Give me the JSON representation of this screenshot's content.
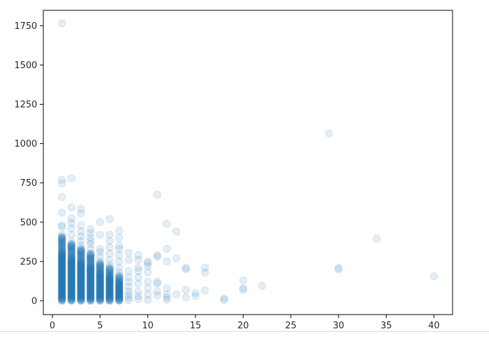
{
  "chart_data": {
    "type": "scatter",
    "title": "",
    "xlabel": "",
    "ylabel": "",
    "xlim": [
      -0.95,
      41.95
    ],
    "ylim": [
      -88,
      1848
    ],
    "xticks": [
      0,
      5,
      10,
      15,
      20,
      25,
      30,
      35,
      40
    ],
    "yticks": [
      0,
      250,
      500,
      750,
      1000,
      1250,
      1500,
      1750
    ],
    "xtick_labels": [
      "0",
      "5",
      "10",
      "15",
      "20",
      "25",
      "30",
      "35",
      "40"
    ],
    "ytick_labels": [
      "0",
      "250",
      "500",
      "750",
      "1000",
      "1250",
      "1500",
      "1750"
    ],
    "grid": false,
    "legend": "none",
    "marker_color": "#1f77b4",
    "marker_alpha": 0.12,
    "points": [
      [
        1,
        1765
      ],
      [
        1,
        770
      ],
      [
        1,
        745
      ],
      [
        1,
        660
      ],
      [
        1,
        560
      ],
      [
        1,
        480
      ],
      [
        1,
        470
      ],
      [
        1,
        420
      ],
      [
        1,
        400
      ],
      [
        2,
        780
      ],
      [
        2,
        595
      ],
      [
        2,
        525
      ],
      [
        2,
        495
      ],
      [
        2,
        460
      ],
      [
        2,
        420
      ],
      [
        2,
        375
      ],
      [
        2,
        360
      ],
      [
        2,
        345
      ],
      [
        3,
        585
      ],
      [
        3,
        555
      ],
      [
        3,
        480
      ],
      [
        3,
        440
      ],
      [
        3,
        410
      ],
      [
        3,
        380
      ],
      [
        3,
        350
      ],
      [
        3,
        330
      ],
      [
        3,
        310
      ],
      [
        4,
        455
      ],
      [
        4,
        430
      ],
      [
        4,
        400
      ],
      [
        4,
        380
      ],
      [
        4,
        360
      ],
      [
        4,
        330
      ],
      [
        4,
        300
      ],
      [
        4,
        270
      ],
      [
        5,
        500
      ],
      [
        5,
        420
      ],
      [
        5,
        330
      ],
      [
        5,
        310
      ],
      [
        5,
        280
      ],
      [
        5,
        250
      ],
      [
        5,
        220
      ],
      [
        6,
        520
      ],
      [
        6,
        420
      ],
      [
        6,
        380
      ],
      [
        6,
        340
      ],
      [
        6,
        300
      ],
      [
        6,
        260
      ],
      [
        6,
        230
      ],
      [
        7,
        445
      ],
      [
        7,
        400
      ],
      [
        7,
        350
      ],
      [
        7,
        330
      ],
      [
        7,
        290
      ],
      [
        7,
        250
      ],
      [
        7,
        210
      ],
      [
        7,
        180
      ],
      [
        8,
        305
      ],
      [
        8,
        260
      ],
      [
        8,
        190
      ],
      [
        8,
        150
      ],
      [
        8,
        120
      ],
      [
        8,
        90
      ],
      [
        8,
        60
      ],
      [
        8,
        40
      ],
      [
        8,
        20
      ],
      [
        8,
        5
      ],
      [
        9,
        290
      ],
      [
        9,
        260
      ],
      [
        9,
        210
      ],
      [
        9,
        190
      ],
      [
        9,
        150
      ],
      [
        9,
        110
      ],
      [
        9,
        60
      ],
      [
        9,
        30
      ],
      [
        9,
        10
      ],
      [
        10,
        250
      ],
      [
        10,
        240
      ],
      [
        10,
        220
      ],
      [
        10,
        180
      ],
      [
        10,
        120
      ],
      [
        10,
        80
      ],
      [
        10,
        40
      ],
      [
        10,
        5
      ],
      [
        11,
        675
      ],
      [
        11,
        290
      ],
      [
        11,
        280
      ],
      [
        11,
        120
      ],
      [
        11,
        110
      ],
      [
        11,
        60
      ],
      [
        11,
        35
      ],
      [
        12,
        490
      ],
      [
        12,
        330
      ],
      [
        12,
        250
      ],
      [
        12,
        80
      ],
      [
        12,
        40
      ],
      [
        12,
        20
      ],
      [
        12,
        5
      ],
      [
        13,
        440
      ],
      [
        13,
        270
      ],
      [
        13,
        40
      ],
      [
        14,
        210
      ],
      [
        14,
        200
      ],
      [
        14,
        70
      ],
      [
        14,
        20
      ],
      [
        15,
        50
      ],
      [
        15,
        30
      ],
      [
        16,
        210
      ],
      [
        16,
        180
      ],
      [
        16,
        65
      ],
      [
        18,
        15
      ],
      [
        18,
        5
      ],
      [
        20,
        130
      ],
      [
        20,
        80
      ],
      [
        20,
        70
      ],
      [
        22,
        95
      ],
      [
        29,
        1065
      ],
      [
        30,
        210
      ],
      [
        30,
        200
      ],
      [
        34,
        395
      ],
      [
        40,
        155
      ]
    ]
  }
}
